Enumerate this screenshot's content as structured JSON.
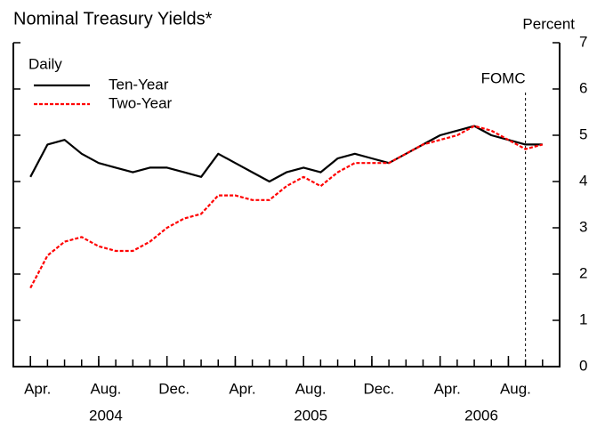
{
  "chart_data": {
    "type": "line",
    "title": "Nominal Treasury Yields*",
    "y_label": "Percent",
    "frequency_label": "Daily",
    "x": [
      "2004-04",
      "2004-05",
      "2004-06",
      "2004-07",
      "2004-08",
      "2004-09",
      "2004-10",
      "2004-11",
      "2004-12",
      "2005-01",
      "2005-02",
      "2005-03",
      "2005-04",
      "2005-05",
      "2005-06",
      "2005-07",
      "2005-08",
      "2005-09",
      "2005-10",
      "2005-11",
      "2005-12",
      "2006-01",
      "2006-02",
      "2006-03",
      "2006-04",
      "2006-05",
      "2006-06",
      "2006-07",
      "2006-08",
      "2006-09",
      "2006-10"
    ],
    "series": [
      {
        "name": "Ten-Year",
        "color": "#000000",
        "dash": false,
        "values": [
          4.1,
          4.8,
          4.9,
          4.6,
          4.4,
          4.3,
          4.2,
          4.3,
          4.3,
          4.2,
          4.1,
          4.6,
          4.4,
          4.2,
          4.0,
          4.2,
          4.3,
          4.2,
          4.5,
          4.6,
          4.5,
          4.4,
          4.6,
          4.8,
          5.0,
          5.1,
          5.2,
          5.0,
          4.9,
          4.8,
          4.8
        ]
      },
      {
        "name": "Two-Year",
        "color": "#ff0000",
        "dash": true,
        "values": [
          1.7,
          2.4,
          2.7,
          2.8,
          2.6,
          2.5,
          2.5,
          2.7,
          3.0,
          3.2,
          3.3,
          3.7,
          3.7,
          3.6,
          3.6,
          3.9,
          4.1,
          3.9,
          4.2,
          4.4,
          4.4,
          4.4,
          4.6,
          4.8,
          4.9,
          5.0,
          5.2,
          5.1,
          4.9,
          4.7,
          4.8
        ]
      }
    ],
    "xlim": [
      "2004-03",
      "2006-11"
    ],
    "xticks": [
      {
        "value": "2004-04",
        "label": "Apr."
      },
      {
        "value": "2004-08",
        "label": "Aug."
      },
      {
        "value": "2004-12",
        "label": "Dec."
      },
      {
        "value": "2005-04",
        "label": "Apr."
      },
      {
        "value": "2005-08",
        "label": "Aug."
      },
      {
        "value": "2005-12",
        "label": "Dec."
      },
      {
        "value": "2006-04",
        "label": "Apr."
      },
      {
        "value": "2006-08",
        "label": "Aug."
      }
    ],
    "year_labels": [
      {
        "value": "2004-08",
        "label": "2004"
      },
      {
        "value": "2005-08",
        "label": "2005"
      },
      {
        "value": "2006-06",
        "label": "2006"
      }
    ],
    "ylim": [
      0,
      7
    ],
    "yticks": [
      0,
      1,
      2,
      3,
      4,
      5,
      6,
      7
    ],
    "y_axis_side": "right",
    "legend": "upper left",
    "annotations": [
      {
        "x": "2006-09",
        "label": "FOMC"
      }
    ]
  }
}
